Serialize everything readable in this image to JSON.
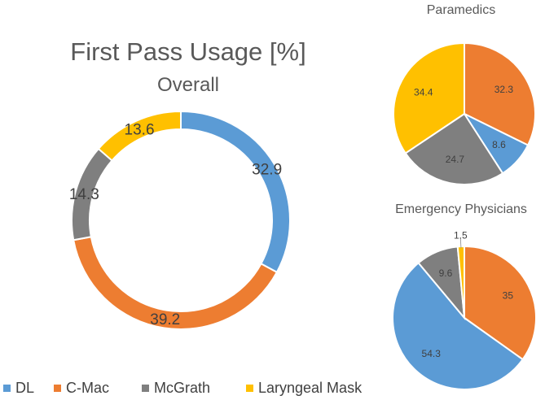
{
  "title": "First Pass Usage [%]",
  "colors": {
    "DL": "#5B9BD5",
    "C-Mac": "#ED7D31",
    "McGrath": "#7F7F7F",
    "Laryngeal Mask": "#FFC000"
  },
  "legend": {
    "placement": "bottom-left",
    "items": [
      "DL",
      "C-Mac",
      "McGrath",
      "Laryngeal Mask"
    ]
  },
  "chart_data": [
    {
      "type": "pie",
      "variant": "donut",
      "title": "Overall",
      "categories": [
        "DL",
        "C-Mac",
        "McGrath",
        "Laryngeal Mask"
      ],
      "values": [
        32.9,
        39.2,
        14.3,
        13.6
      ],
      "labels": [
        "32.9",
        "39.2",
        "14.3",
        "13.6"
      ]
    },
    {
      "type": "pie",
      "title": "Paramedics",
      "categories": [
        "C-Mac",
        "DL",
        "McGrath",
        "Laryngeal Mask"
      ],
      "values": [
        32.3,
        8.6,
        24.7,
        34.4
      ],
      "labels": [
        "32.3",
        "8.6",
        "24.7",
        "34.4"
      ]
    },
    {
      "type": "pie",
      "title": "Emergency Physicians",
      "categories": [
        "C-Mac",
        "DL",
        "McGrath",
        "Laryngeal Mask"
      ],
      "values": [
        35,
        54.3,
        9.6,
        1.5
      ],
      "labels": [
        "35",
        "54.3",
        "9.6",
        "1.5"
      ]
    }
  ]
}
